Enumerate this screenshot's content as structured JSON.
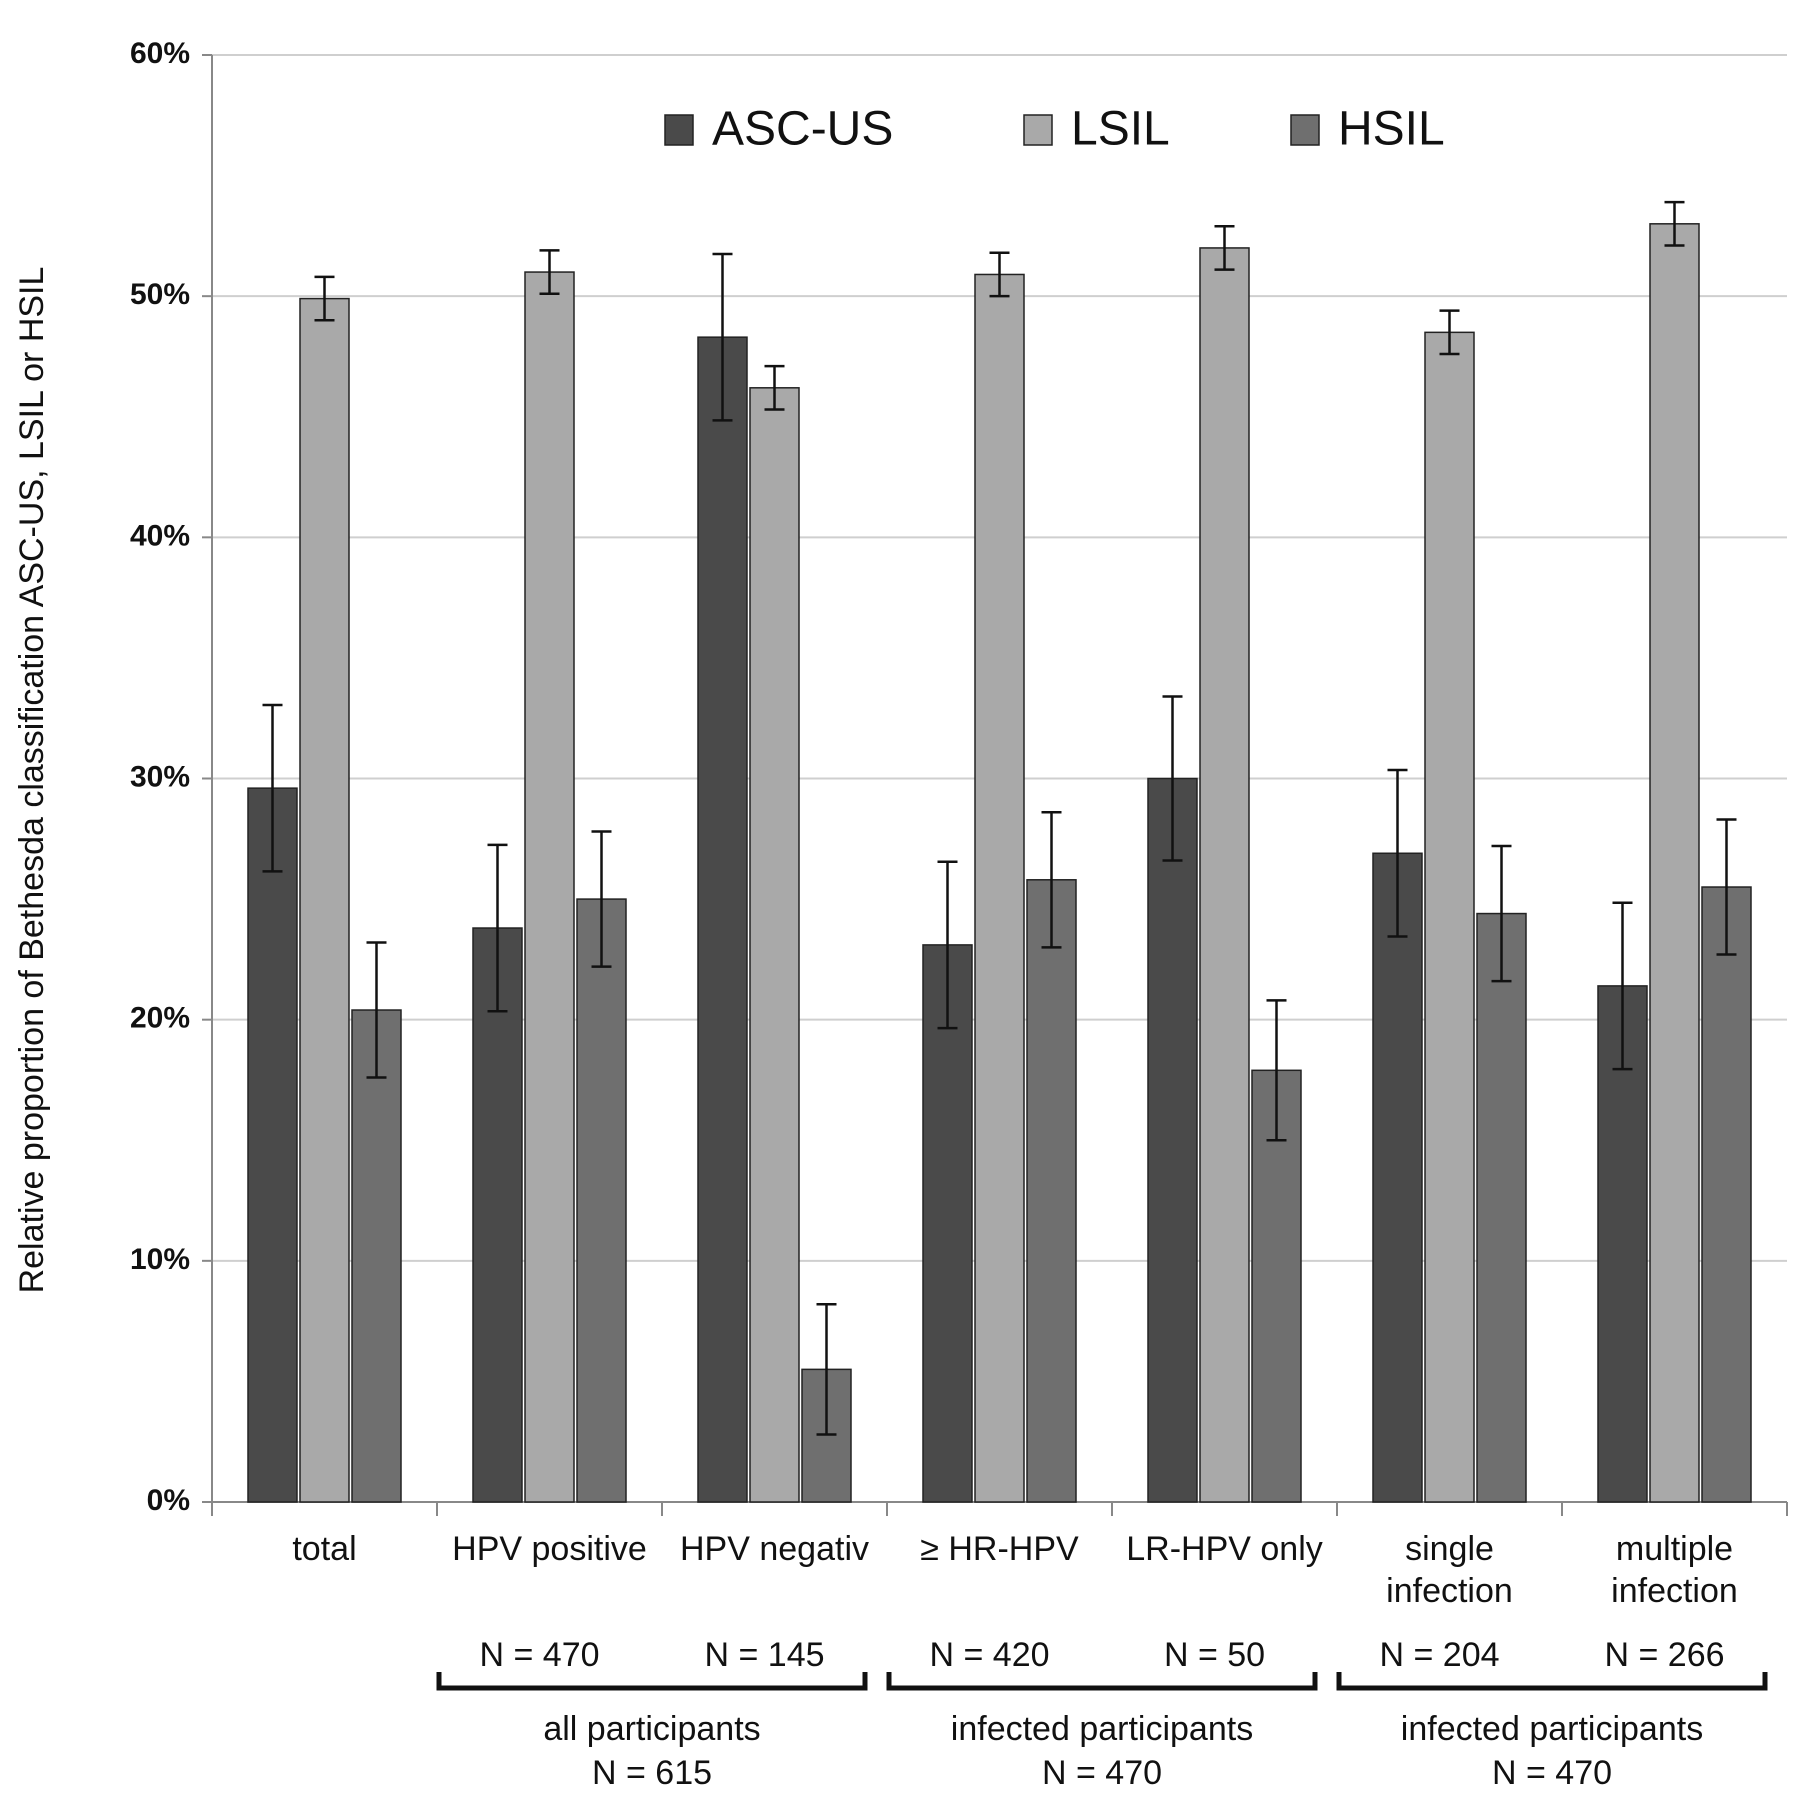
{
  "chart_data": {
    "type": "bar",
    "y_label": "Relative proportion of Bethesda classification ASC-US, LSIL or HSIL",
    "categories": [
      "total",
      "HPV positive",
      "HPV negativ",
      "≥ HR-HPV",
      "LR-HPV only",
      "single\ninfection",
      "multiple\ninfection"
    ],
    "category_notes": [
      null,
      "N = 470",
      "N = 145",
      "N = 420",
      "N = 50",
      "N = 204",
      "N = 266"
    ],
    "groups": [
      {
        "label": "all participants",
        "count_label": "N = 615"
      },
      {
        "label": "infected participants",
        "count_label": "N = 470"
      },
      {
        "label": "infected participants",
        "count_label": "N = 470"
      }
    ],
    "series": [
      {
        "name": "ASC-US",
        "color": "#4a4a4a",
        "values": [
          29.6,
          23.8,
          48.3,
          23.1,
          30.0,
          26.9,
          21.4
        ],
        "errors": [
          3.45,
          3.45,
          3.45,
          3.45,
          3.4,
          3.45,
          3.45
        ]
      },
      {
        "name": "LSIL",
        "color": "#a9a9a9",
        "values": [
          49.9,
          51.0,
          46.2,
          50.9,
          52.0,
          48.5,
          53.0
        ],
        "errors": [
          0.9,
          0.9,
          0.9,
          0.9,
          0.9,
          0.9,
          0.9
        ]
      },
      {
        "name": "HSIL",
        "color": "#6f6f6f",
        "values": [
          20.4,
          25.0,
          5.5,
          25.8,
          17.9,
          24.4,
          25.5
        ],
        "errors": [
          2.8,
          2.8,
          2.7,
          2.8,
          2.9,
          2.8,
          2.8
        ]
      }
    ],
    "ylim": [
      0,
      60
    ],
    "yticks": [
      {
        "value": 0,
        "label": "0%"
      },
      {
        "value": 10,
        "label": "10%"
      },
      {
        "value": 20,
        "label": "20%"
      },
      {
        "value": 30,
        "label": "30%"
      },
      {
        "value": 40,
        "label": "40%"
      },
      {
        "value": 50,
        "label": "50%"
      },
      {
        "value": 60,
        "label": "60%"
      }
    ],
    "grid": true,
    "legend": "top"
  }
}
